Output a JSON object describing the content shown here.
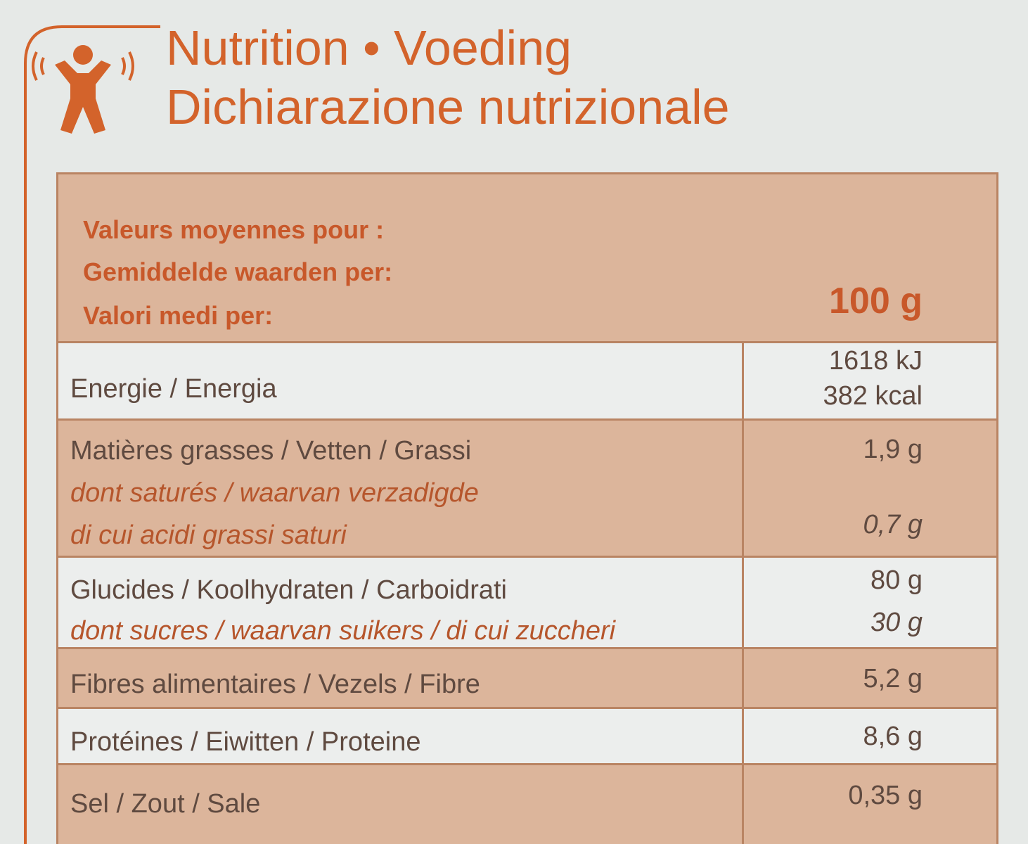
{
  "header": {
    "title_lines": [
      "Nutrition • Voeding",
      "Dichiarazione nutrizionale"
    ]
  },
  "table": {
    "header_lines": [
      "Valeurs moyennes pour :",
      "Gemiddelde waarden per:",
      "Valori medi per:"
    ],
    "column": "100 g",
    "rows": [
      {
        "labels": [
          "Energie / Energia"
        ],
        "values": [
          "1618 kJ",
          "382 kcal"
        ]
      },
      {
        "labels": [
          "Matières grasses / Vetten / Grassi",
          "dont saturés / waarvan verzadigde",
          "di cui acidi grassi saturi"
        ],
        "values": [
          "1,9 g",
          "0,7 g"
        ]
      },
      {
        "labels": [
          "Glucides / Koolhydraten / Carboidrati",
          "dont sucres / waarvan suikers / di cui zuccheri"
        ],
        "values": [
          "80 g",
          "30 g"
        ]
      },
      {
        "labels": [
          "Fibres alimentaires / Vezels / Fibre"
        ],
        "values": [
          "5,2 g"
        ]
      },
      {
        "labels": [
          "Protéines / Eiwitten / Proteine"
        ],
        "values": [
          "8,6 g"
        ]
      },
      {
        "labels": [
          "Sel / Zout / Sale"
        ],
        "values": [
          "0,35 g"
        ]
      }
    ]
  }
}
